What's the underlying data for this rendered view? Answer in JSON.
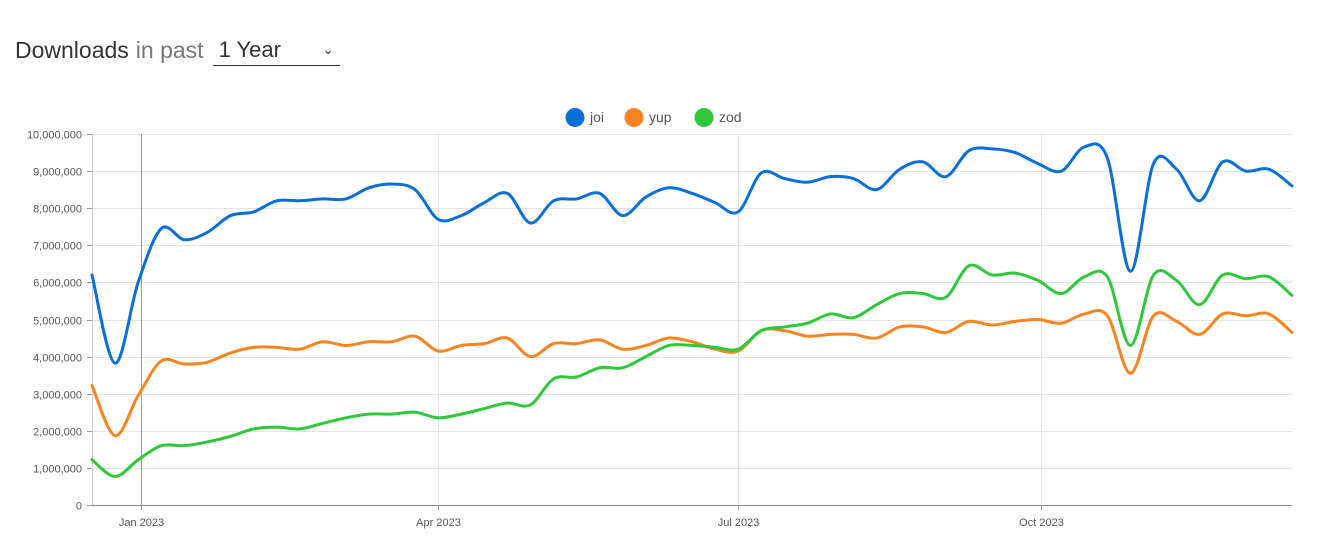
{
  "header": {
    "title": "Downloads",
    "prefix": "in past",
    "period": "1 Year"
  },
  "chart_data": {
    "type": "line",
    "title": "",
    "xlabel": "",
    "ylabel": "",
    "grid": true,
    "legend_position": "top-center",
    "x_tick_labels": [
      "Jan 2023",
      "Apr 2023",
      "Jul 2023",
      "Oct 2023"
    ],
    "x_ticks": [
      "2023-01-01",
      "2023-04-01",
      "2023-07-01",
      "2023-10-01"
    ],
    "y_tick_labels": [
      "0",
      "1,000,000",
      "2,000,000",
      "3,000,000",
      "4,000,000",
      "5,000,000",
      "6,000,000",
      "7,000,000",
      "8,000,000",
      "9,000,000",
      "10,000,000"
    ],
    "ylim": [
      0,
      10000000
    ],
    "xlim": [
      "2022-12-17",
      "2023-12-16"
    ],
    "x": [
      "2022-12-17",
      "2022-12-24",
      "2022-12-31",
      "2023-01-07",
      "2023-01-14",
      "2023-01-21",
      "2023-01-28",
      "2023-02-04",
      "2023-02-11",
      "2023-02-18",
      "2023-02-25",
      "2023-03-04",
      "2023-03-11",
      "2023-03-18",
      "2023-03-25",
      "2023-04-01",
      "2023-04-08",
      "2023-04-15",
      "2023-04-22",
      "2023-04-29",
      "2023-05-06",
      "2023-05-13",
      "2023-05-20",
      "2023-05-27",
      "2023-06-03",
      "2023-06-10",
      "2023-06-17",
      "2023-06-24",
      "2023-07-01",
      "2023-07-08",
      "2023-07-15",
      "2023-07-22",
      "2023-07-29",
      "2023-08-05",
      "2023-08-12",
      "2023-08-19",
      "2023-08-26",
      "2023-09-02",
      "2023-09-09",
      "2023-09-16",
      "2023-09-23",
      "2023-09-30",
      "2023-10-07",
      "2023-10-14",
      "2023-10-21",
      "2023-10-28",
      "2023-11-04",
      "2023-11-11",
      "2023-11-18",
      "2023-11-25",
      "2023-12-02",
      "2023-12-09",
      "2023-12-16"
    ],
    "series": [
      {
        "name": "joi",
        "color": "#0b6fd8",
        "values": [
          6200000,
          3820000,
          6000000,
          7450000,
          7150000,
          7350000,
          7800000,
          7900000,
          8200000,
          8200000,
          8250000,
          8250000,
          8550000,
          8650000,
          8500000,
          7700000,
          7800000,
          8150000,
          8400000,
          7600000,
          8200000,
          8250000,
          8400000,
          7800000,
          8300000,
          8550000,
          8400000,
          8150000,
          7900000,
          8950000,
          8800000,
          8700000,
          8850000,
          8800000,
          8500000,
          9050000,
          9250000,
          8850000,
          9550000,
          9600000,
          9500000,
          9200000,
          9000000,
          9650000,
          9350000,
          6300000,
          9200000,
          9050000,
          8200000,
          9250000,
          9000000,
          9050000,
          8600000
        ]
      },
      {
        "name": "yup",
        "color": "#f98420",
        "values": [
          3220000,
          1870000,
          2950000,
          3880000,
          3800000,
          3850000,
          4100000,
          4250000,
          4250000,
          4200000,
          4400000,
          4300000,
          4400000,
          4400000,
          4550000,
          4150000,
          4300000,
          4350000,
          4500000,
          4000000,
          4350000,
          4350000,
          4450000,
          4200000,
          4300000,
          4500000,
          4400000,
          4200000,
          4150000,
          4700000,
          4700000,
          4550000,
          4600000,
          4600000,
          4500000,
          4800000,
          4800000,
          4650000,
          4950000,
          4850000,
          4950000,
          5000000,
          4900000,
          5150000,
          5100000,
          3550000,
          5100000,
          4950000,
          4600000,
          5150000,
          5100000,
          5150000,
          4650000
        ]
      },
      {
        "name": "zod",
        "color": "#2ec83a",
        "values": [
          1220000,
          770000,
          1220000,
          1600000,
          1600000,
          1700000,
          1850000,
          2050000,
          2100000,
          2050000,
          2200000,
          2350000,
          2450000,
          2450000,
          2500000,
          2350000,
          2450000,
          2600000,
          2750000,
          2700000,
          3400000,
          3450000,
          3700000,
          3700000,
          4000000,
          4300000,
          4300000,
          4250000,
          4200000,
          4700000,
          4800000,
          4900000,
          5150000,
          5050000,
          5400000,
          5700000,
          5700000,
          5600000,
          6450000,
          6200000,
          6250000,
          6050000,
          5700000,
          6150000,
          6150000,
          4300000,
          6200000,
          6050000,
          5400000,
          6200000,
          6100000,
          6150000,
          5650000
        ]
      }
    ]
  }
}
